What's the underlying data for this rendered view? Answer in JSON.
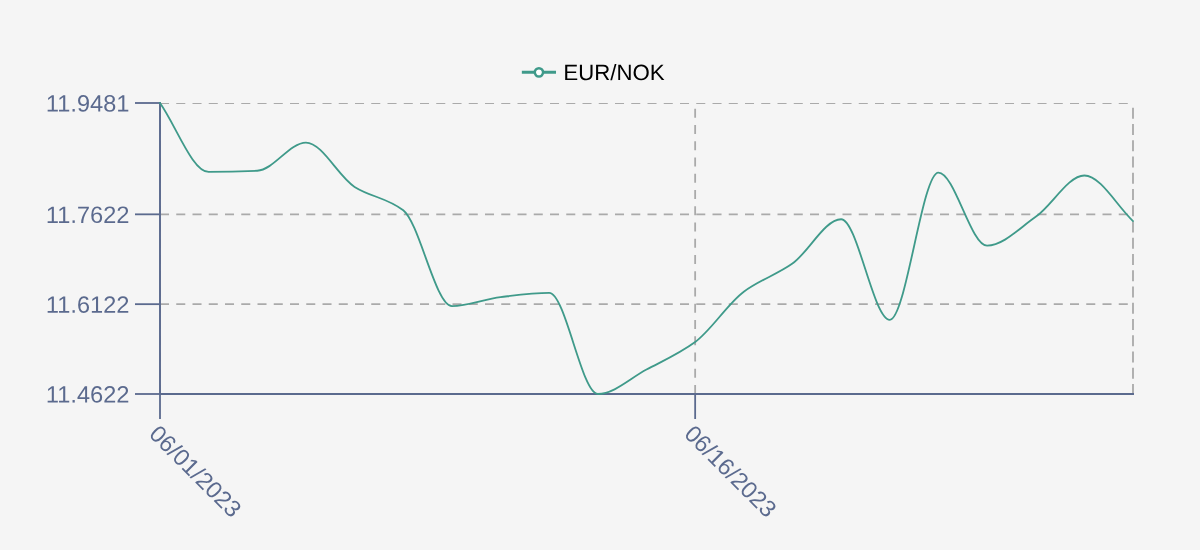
{
  "chart_data": {
    "type": "line",
    "categories": [
      "06/01/2023",
      null,
      null,
      null,
      null,
      null,
      null,
      null,
      null,
      null,
      null,
      "06/16/2023",
      null,
      null,
      null,
      null,
      null,
      null,
      null,
      null,
      null
    ],
    "series": [
      {
        "name": "EUR/NOK",
        "color": "#3f9a8a",
        "values": [
          11.9481,
          11.833,
          11.835,
          11.882,
          11.808,
          11.769,
          11.609,
          11.624,
          11.631,
          11.4622,
          11.503,
          11.549,
          11.633,
          11.68,
          11.754,
          11.586,
          11.832,
          11.71,
          11.758,
          11.827,
          11.751
        ]
      }
    ],
    "ylim": [
      11.4622,
      11.9481
    ],
    "yticks": [
      11.4622,
      11.6122,
      11.7622,
      11.9481
    ],
    "grid": true,
    "legend": "top",
    "line_style": "solid"
  }
}
